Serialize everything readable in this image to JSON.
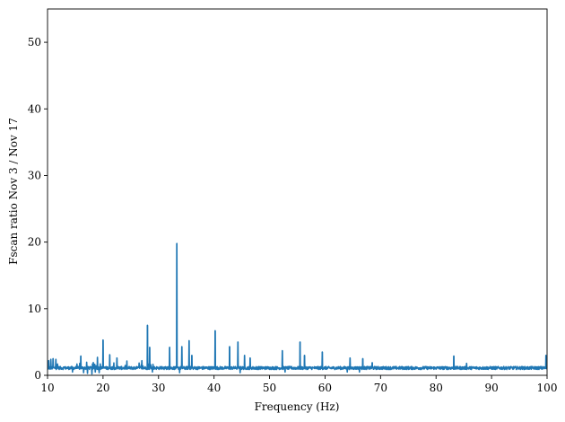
{
  "chart_data": {
    "type": "line",
    "xlabel": "Frequency (Hz)",
    "ylabel": "Fscan ratio Nov 3 / Nov 17",
    "xlim": [
      10,
      100
    ],
    "ylim": [
      0,
      55
    ],
    "xticks": [
      10,
      20,
      30,
      40,
      50,
      60,
      70,
      80,
      90,
      100
    ],
    "yticks": [
      0,
      10,
      20,
      30,
      40,
      50
    ],
    "grid": false,
    "legend": "none",
    "colors": {
      "series": "#1f77b4"
    },
    "series": [
      {
        "baseline": 1.1,
        "spikes": [
          {
            "x": 10.2,
            "y": 2.2
          },
          {
            "x": 10.6,
            "y": 2.4
          },
          {
            "x": 11.0,
            "y": 2.5
          },
          {
            "x": 11.5,
            "y": 2.4
          },
          {
            "x": 16.0,
            "y": 2.9
          },
          {
            "x": 19.0,
            "y": 2.7
          },
          {
            "x": 20.0,
            "y": 5.3
          },
          {
            "x": 21.2,
            "y": 3.1
          },
          {
            "x": 22.5,
            "y": 2.6
          },
          {
            "x": 27.0,
            "y": 2.2
          },
          {
            "x": 28.0,
            "y": 7.5
          },
          {
            "x": 28.4,
            "y": 4.2
          },
          {
            "x": 32.0,
            "y": 4.2
          },
          {
            "x": 33.3,
            "y": 19.8
          },
          {
            "x": 34.2,
            "y": 4.3
          },
          {
            "x": 35.5,
            "y": 5.2
          },
          {
            "x": 36.0,
            "y": 3.0
          },
          {
            "x": 40.2,
            "y": 6.7
          },
          {
            "x": 42.8,
            "y": 4.3
          },
          {
            "x": 44.3,
            "y": 5.0
          },
          {
            "x": 45.5,
            "y": 3.0
          },
          {
            "x": 46.5,
            "y": 2.6
          },
          {
            "x": 52.3,
            "y": 3.7
          },
          {
            "x": 55.5,
            "y": 5.0
          },
          {
            "x": 56.3,
            "y": 3.0
          },
          {
            "x": 59.5,
            "y": 3.5
          },
          {
            "x": 64.5,
            "y": 2.6
          },
          {
            "x": 66.8,
            "y": 2.5
          },
          {
            "x": 68.5,
            "y": 1.9
          },
          {
            "x": 83.2,
            "y": 2.9
          },
          {
            "x": 85.5,
            "y": 1.8
          },
          {
            "x": 99.8,
            "y": 3.0
          }
        ],
        "dips": [
          {
            "x": 14.5,
            "y": 0.5
          },
          {
            "x": 16.5,
            "y": 0.4
          },
          {
            "x": 17.2,
            "y": 0.3
          },
          {
            "x": 18.0,
            "y": 0.2
          },
          {
            "x": 18.6,
            "y": 0.5
          },
          {
            "x": 19.3,
            "y": 0.4
          },
          {
            "x": 28.9,
            "y": 0.5
          },
          {
            "x": 33.8,
            "y": 0.4
          },
          {
            "x": 44.7,
            "y": 0.4
          },
          {
            "x": 52.8,
            "y": 0.5
          },
          {
            "x": 64.0,
            "y": 0.5
          },
          {
            "x": 66.2,
            "y": 0.5
          }
        ]
      }
    ]
  }
}
